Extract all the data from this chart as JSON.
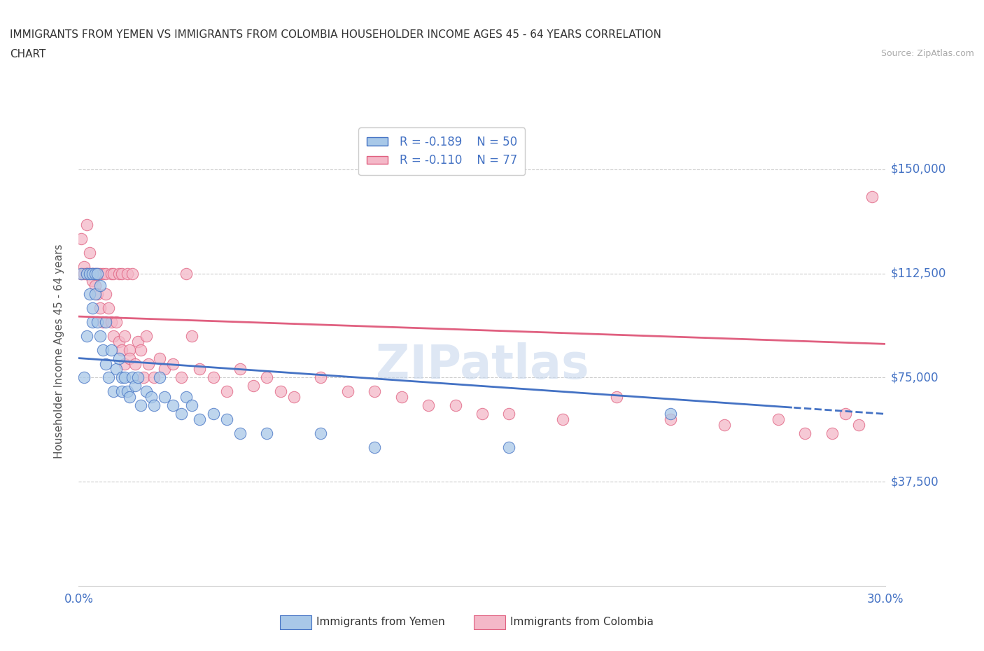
{
  "title_line1": "IMMIGRANTS FROM YEMEN VS IMMIGRANTS FROM COLOMBIA HOUSEHOLDER INCOME AGES 45 - 64 YEARS CORRELATION",
  "title_line2": "CHART",
  "source_text": "Source: ZipAtlas.com",
  "ylabel": "Householder Income Ages 45 - 64 years",
  "xlim": [
    0.0,
    0.3
  ],
  "ylim": [
    0,
    168750
  ],
  "yticks": [
    37500,
    75000,
    112500,
    150000
  ],
  "ytick_labels": [
    "$37,500",
    "$75,000",
    "$112,500",
    "$150,000"
  ],
  "xticks": [
    0.0,
    0.05,
    0.1,
    0.15,
    0.2,
    0.25,
    0.3
  ],
  "xtick_labels": [
    "0.0%",
    "",
    "",
    "",
    "",
    "",
    "30.0%"
  ],
  "yemen_color": "#a8c8e8",
  "colombia_color": "#f4b8c8",
  "trend_yemen_color": "#4472c4",
  "trend_colombia_color": "#e06080",
  "legend_R_yemen": "R = -0.189",
  "legend_N_yemen": "N = 50",
  "legend_R_colombia": "R = -0.110",
  "legend_N_colombia": "N = 77",
  "watermark": "ZIPatlas",
  "background_color": "#ffffff",
  "yemen_x": [
    0.001,
    0.002,
    0.003,
    0.003,
    0.004,
    0.004,
    0.005,
    0.005,
    0.005,
    0.006,
    0.006,
    0.007,
    0.007,
    0.008,
    0.008,
    0.009,
    0.01,
    0.01,
    0.011,
    0.012,
    0.013,
    0.014,
    0.015,
    0.016,
    0.016,
    0.017,
    0.018,
    0.019,
    0.02,
    0.021,
    0.022,
    0.023,
    0.025,
    0.027,
    0.028,
    0.03,
    0.032,
    0.035,
    0.038,
    0.04,
    0.042,
    0.045,
    0.05,
    0.055,
    0.06,
    0.07,
    0.09,
    0.11,
    0.16,
    0.22
  ],
  "yemen_y": [
    112500,
    75000,
    112500,
    90000,
    112500,
    105000,
    112500,
    100000,
    95000,
    112500,
    105000,
    112500,
    95000,
    108000,
    90000,
    85000,
    80000,
    95000,
    75000,
    85000,
    70000,
    78000,
    82000,
    75000,
    70000,
    75000,
    70000,
    68000,
    75000,
    72000,
    75000,
    65000,
    70000,
    68000,
    65000,
    75000,
    68000,
    65000,
    62000,
    68000,
    65000,
    60000,
    62000,
    60000,
    55000,
    55000,
    55000,
    50000,
    50000,
    62000
  ],
  "colombia_x": [
    0.001,
    0.001,
    0.002,
    0.002,
    0.003,
    0.003,
    0.003,
    0.004,
    0.004,
    0.005,
    0.005,
    0.005,
    0.006,
    0.006,
    0.007,
    0.007,
    0.008,
    0.008,
    0.009,
    0.009,
    0.01,
    0.01,
    0.011,
    0.012,
    0.012,
    0.013,
    0.013,
    0.014,
    0.015,
    0.015,
    0.016,
    0.016,
    0.017,
    0.017,
    0.018,
    0.019,
    0.019,
    0.02,
    0.021,
    0.022,
    0.023,
    0.024,
    0.025,
    0.026,
    0.028,
    0.03,
    0.032,
    0.035,
    0.038,
    0.04,
    0.042,
    0.045,
    0.05,
    0.055,
    0.06,
    0.065,
    0.07,
    0.075,
    0.08,
    0.09,
    0.1,
    0.11,
    0.12,
    0.13,
    0.14,
    0.15,
    0.16,
    0.18,
    0.2,
    0.22,
    0.24,
    0.26,
    0.27,
    0.28,
    0.285,
    0.29,
    0.295
  ],
  "colombia_y": [
    112500,
    125000,
    115000,
    112500,
    112500,
    130000,
    112500,
    112500,
    120000,
    112500,
    112500,
    110000,
    112500,
    108000,
    112500,
    105000,
    112500,
    100000,
    112500,
    95000,
    112500,
    105000,
    100000,
    112500,
    95000,
    112500,
    90000,
    95000,
    112500,
    88000,
    112500,
    85000,
    90000,
    80000,
    112500,
    85000,
    82000,
    112500,
    80000,
    88000,
    85000,
    75000,
    90000,
    80000,
    75000,
    82000,
    78000,
    80000,
    75000,
    112500,
    90000,
    78000,
    75000,
    70000,
    78000,
    72000,
    75000,
    70000,
    68000,
    75000,
    70000,
    70000,
    68000,
    65000,
    65000,
    62000,
    62000,
    60000,
    68000,
    60000,
    58000,
    60000,
    55000,
    55000,
    62000,
    58000,
    140000
  ]
}
